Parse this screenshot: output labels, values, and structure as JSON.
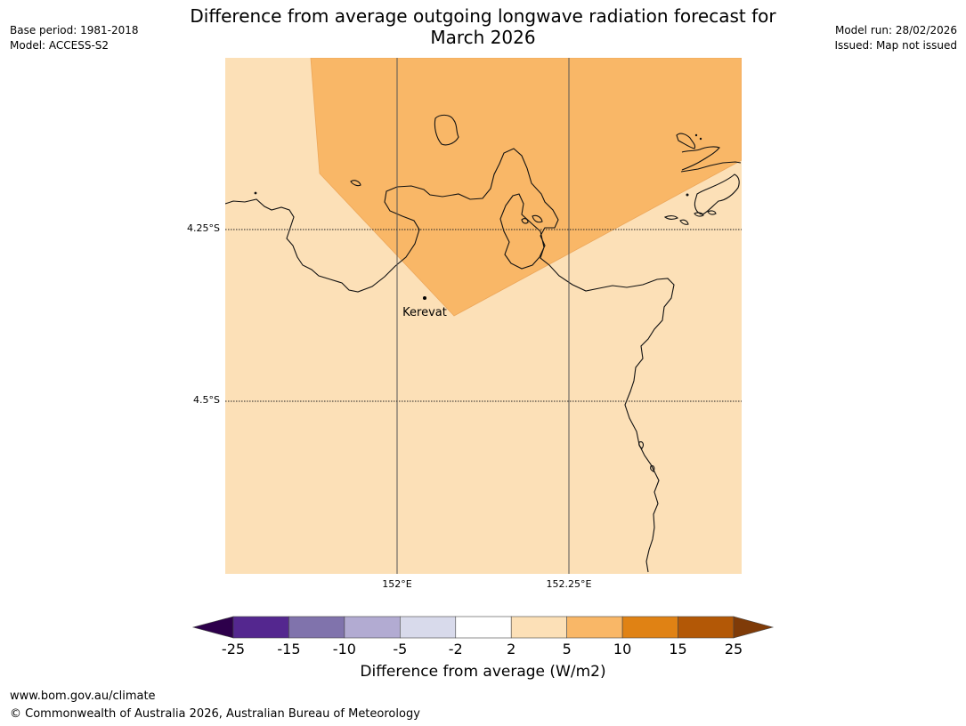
{
  "header": {
    "title_line1": "Difference from average outgoing longwave radiation forecast for",
    "title_line2": "March 2026",
    "base_period": "Base period: 1981-2018",
    "model": "Model: ACCESS-S2",
    "model_run": "Model run: 28/02/2026",
    "issued": "Issued: Map not issued"
  },
  "map": {
    "lat_labels": [
      "4.25°S",
      "4.5°S"
    ],
    "lon_labels": [
      "152°E",
      "152.25°E"
    ],
    "place": "Kerevat",
    "colors": {
      "background_class": "#fce0b7",
      "anomaly_class": "#f9b767",
      "coast": "#111111",
      "grid": "#555555"
    }
  },
  "colorbar": {
    "caption": "Difference from average (W/m2)",
    "labels": [
      "-25",
      "-15",
      "-10",
      "-5",
      "-2",
      "2",
      "5",
      "10",
      "15",
      "25"
    ],
    "colors": [
      "#54278f",
      "#8073ac",
      "#b2abd2",
      "#d8daeb",
      "#ffffff",
      "#fce0b7",
      "#f9b767",
      "#e08214",
      "#b35806"
    ],
    "low_extend_color": "#2d004b",
    "high_extend_color": "#7f3b08"
  },
  "footer": {
    "url": "www.bom.gov.au/climate",
    "copyright": "© Commonwealth of Australia 2026, Australian Bureau of Meteorology"
  }
}
